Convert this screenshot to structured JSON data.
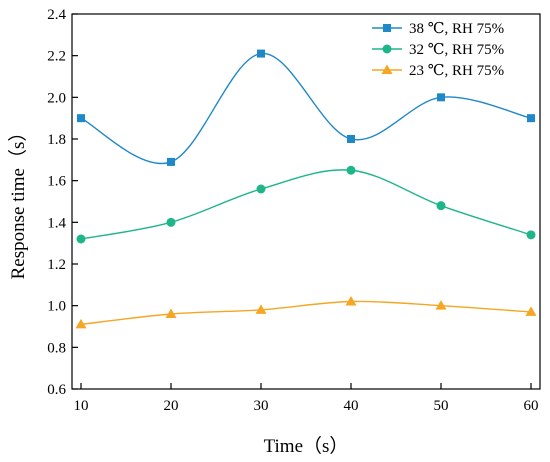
{
  "chart_data": {
    "type": "line",
    "title": "",
    "xlabel": "Time（s）",
    "ylabel": "Response time（s）",
    "x": [
      10,
      20,
      30,
      40,
      50,
      60
    ],
    "xlim": [
      9,
      61
    ],
    "ylim": [
      0.6,
      2.4
    ],
    "xticks": [
      "10",
      "20",
      "30",
      "40",
      "50",
      "60"
    ],
    "yticks": [
      "0.6",
      "0.8",
      "1.0",
      "1.2",
      "1.4",
      "1.6",
      "1.8",
      "2.0",
      "2.2",
      "2.4"
    ],
    "grid": false,
    "legend_position": "top-right",
    "series": [
      {
        "name": "38 ℃, RH 75%",
        "color": "#1f88c8",
        "marker": "square",
        "values": [
          1.9,
          1.69,
          2.21,
          1.8,
          2.0,
          1.9
        ]
      },
      {
        "name": "32 ℃, RH 75%",
        "color": "#1fb58a",
        "marker": "circle",
        "values": [
          1.32,
          1.4,
          1.56,
          1.65,
          1.48,
          1.34
        ]
      },
      {
        "name": "23 ℃, RH 75%",
        "color": "#f5a623",
        "marker": "triangle",
        "values": [
          0.91,
          0.96,
          0.98,
          1.02,
          1.0,
          0.97
        ]
      }
    ]
  }
}
